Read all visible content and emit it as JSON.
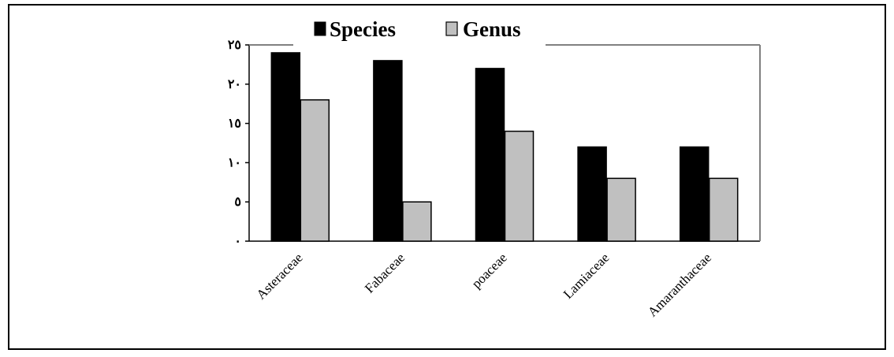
{
  "chart_data": {
    "type": "bar",
    "categories": [
      "Asteraceae",
      "Fabaceae",
      "poaceae",
      "Lamiaceae",
      "Amaranthaceae"
    ],
    "series": [
      {
        "name": "Species",
        "values": [
          24,
          23,
          22,
          12,
          12
        ],
        "color": "#000000"
      },
      {
        "name": "Genus",
        "values": [
          18,
          5,
          14,
          8,
          8
        ],
        "color": "#c0c0c0"
      }
    ],
    "y_ticks": [
      {
        "value": 0,
        "label": "٠"
      },
      {
        "value": 5,
        "label": "٥"
      },
      {
        "value": 10,
        "label": "١٠"
      },
      {
        "value": 15,
        "label": "١٥"
      },
      {
        "value": 20,
        "label": "٢٠"
      },
      {
        "value": 25,
        "label": "٢٥"
      }
    ],
    "ylim": [
      0,
      25
    ],
    "grid": false,
    "legend_position": "top-center",
    "title": "",
    "xlabel": "",
    "ylabel": ""
  }
}
